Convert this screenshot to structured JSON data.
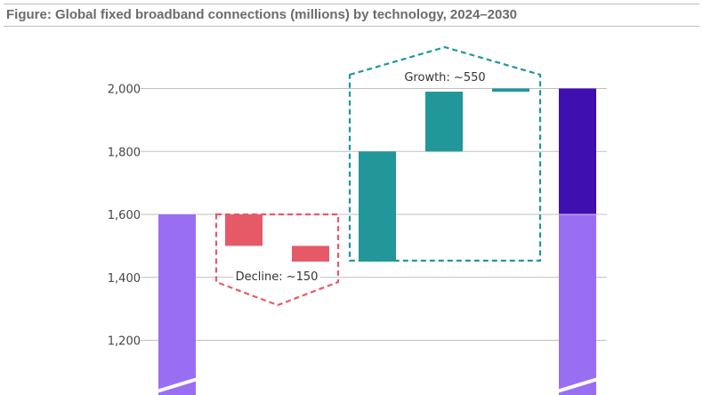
{
  "title": "Figure: Global fixed broadband connections (millions) by technology, 2024–2030",
  "chart_data": {
    "type": "waterfall",
    "y_ticks": [
      1200,
      1400,
      1600,
      1800,
      2000
    ],
    "y_tick_labels": [
      "1,200",
      "1,400",
      "1,600",
      "1,800",
      "2,000"
    ],
    "bars": [
      {
        "kind": "total",
        "base": 1000,
        "value": 1600,
        "color": "#9a6ef2",
        "broken_axis": true
      },
      {
        "kind": "decrease",
        "base": 1500,
        "value": 1600,
        "color": "#e65a68"
      },
      {
        "kind": "decrease",
        "base": 1450,
        "value": 1500,
        "color": "#e65a68"
      },
      {
        "kind": "increase",
        "base": 1450,
        "value": 1800,
        "color": "#21979a"
      },
      {
        "kind": "increase",
        "base": 1800,
        "value": 1990,
        "color": "#21979a"
      },
      {
        "kind": "increase",
        "base": 1990,
        "value": 2000,
        "color": "#21979a"
      },
      {
        "kind": "total",
        "base": 1000,
        "value": 2000,
        "color": "#9a6ef2",
        "top_segment_from": 1600,
        "top_color": "#3f0fb0",
        "broken_axis": true
      }
    ],
    "annotations": [
      {
        "text": "Decline: ~150",
        "group": [
          1,
          2
        ],
        "color": "#e65a68",
        "range": [
          1450,
          1600
        ]
      },
      {
        "text": "Growth: ~550",
        "group": [
          3,
          5
        ],
        "color": "#21979a",
        "range": [
          1450,
          2000
        ]
      }
    ]
  }
}
